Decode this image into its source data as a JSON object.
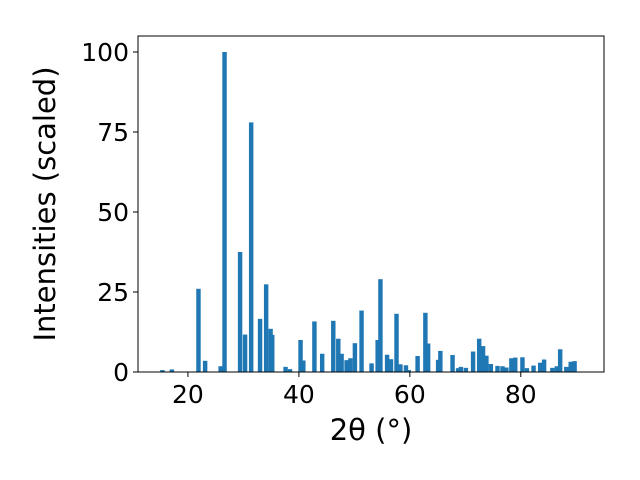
{
  "chart_data": {
    "type": "bar",
    "xlabel": "2θ (°)",
    "ylabel": "Intensities (scaled)",
    "title": "",
    "xlim": [
      11,
      95
    ],
    "ylim": [
      0,
      105
    ],
    "xticks": [
      20,
      40,
      60,
      80
    ],
    "yticks": [
      0,
      25,
      50,
      75,
      100
    ],
    "grid": false,
    "bar_color": "#1f77b4",
    "bar_width": 0.8,
    "x": [
      15.4,
      17.1,
      21.9,
      23.1,
      25.9,
      26.6,
      29.4,
      30.3,
      31.4,
      33.0,
      34.1,
      34.9,
      35.2,
      37.6,
      38.4,
      40.3,
      40.8,
      42.8,
      44.2,
      46.2,
      47.1,
      47.7,
      48.6,
      49.3,
      50.1,
      51.3,
      53.1,
      54.2,
      54.7,
      55.9,
      56.6,
      57.6,
      58.3,
      59.3,
      59.8,
      61.4,
      62.8,
      63.3,
      65.1,
      65.5,
      67.7,
      68.7,
      69.2,
      70.1,
      71.4,
      72.5,
      73.2,
      73.8,
      74.6,
      75.8,
      76.7,
      77.4,
      78.3,
      79.0,
      80.3,
      81.1,
      82.3,
      83.5,
      84.2,
      85.7,
      86.5,
      87.1,
      88.2,
      89.0,
      89.7
    ],
    "values": [
      0.6,
      0.8,
      26.0,
      3.5,
      1.8,
      100.0,
      37.5,
      11.7,
      78.0,
      16.6,
      27.4,
      13.5,
      11.6,
      1.6,
      0.9,
      10.0,
      3.6,
      15.8,
      5.7,
      16.0,
      10.4,
      5.7,
      3.7,
      4.3,
      9.0,
      19.2,
      2.7,
      10.0,
      29.0,
      5.4,
      4.0,
      18.2,
      2.4,
      2.1,
      0.6,
      5.0,
      18.5,
      8.9,
      3.8,
      6.6,
      5.3,
      1.2,
      1.6,
      1.3,
      6.4,
      10.4,
      8.1,
      5.1,
      2.5,
      1.9,
      1.8,
      1.4,
      4.3,
      4.5,
      4.6,
      1.2,
      2.0,
      2.9,
      3.9,
      1.3,
      1.8,
      7.1,
      1.6,
      3.2,
      3.4
    ]
  }
}
